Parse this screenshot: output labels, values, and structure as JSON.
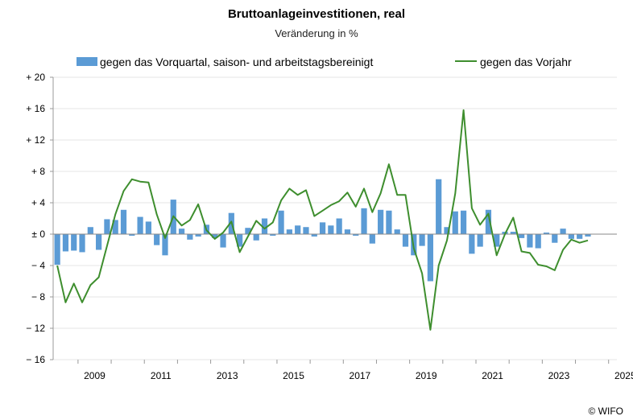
{
  "chart_data": {
    "type": "bar",
    "title": "Bruttoanlageinvestitionen, real",
    "subtitle": "Veränderung in %",
    "credit": "© WIFO",
    "ylim": [
      -16,
      20
    ],
    "yticks": [
      20,
      16,
      12,
      8,
      4,
      0,
      -4,
      -8,
      -12,
      -16
    ],
    "ytick_labels": [
      "+ 20",
      "+ 16",
      "+ 12",
      "+ 8",
      "+ 4",
      "± 0",
      "− 4",
      "− 8",
      "− 12",
      "− 16"
    ],
    "xtick_labels": [
      "2009",
      "2011",
      "2013",
      "2015",
      "2017",
      "2019",
      "2021",
      "2023",
      "2025"
    ],
    "xtick_years": [
      2009,
      2011,
      2013,
      2015,
      2017,
      2019,
      2021,
      2023,
      2025
    ],
    "x_start": 2008.25,
    "colors": {
      "bars": "#5B9BD5",
      "line": "#3E8E2E",
      "grid": "#E6E6E6"
    },
    "legend_position": "top",
    "series": [
      {
        "name": "gegen das Vorquartal, saison- und arbeitstagsbereinigt",
        "type": "bar",
        "values": [
          -3.9,
          -2.2,
          -2.1,
          -2.3,
          0.9,
          -2.0,
          1.9,
          1.8,
          3.1,
          -0.2,
          2.2,
          1.6,
          -1.4,
          -2.7,
          4.4,
          0.7,
          -0.7,
          -0.3,
          1.2,
          -0.5,
          -1.7,
          2.7,
          -1.6,
          0.8,
          -0.8,
          2.0,
          -0.2,
          3.0,
          0.6,
          1.1,
          0.9,
          -0.3,
          1.5,
          1.1,
          2.0,
          0.6,
          -0.2,
          3.3,
          -1.2,
          3.1,
          3.0,
          0.6,
          -1.6,
          -2.7,
          -1.5,
          -6.0,
          7.0,
          0.9,
          2.9,
          3.0,
          -2.5,
          -1.6,
          3.1,
          -1.6,
          0.3,
          0.3,
          -0.5,
          -1.7,
          -1.8,
          0.2,
          -1.1,
          0.7,
          -0.6,
          -0.6,
          -0.3
        ]
      },
      {
        "name": "gegen das Vorjahr",
        "type": "line",
        "values": [
          -4.0,
          -8.7,
          -6.3,
          -8.7,
          -6.5,
          -5.5,
          -1.5,
          2.5,
          5.5,
          7.0,
          6.7,
          6.6,
          2.5,
          -0.5,
          2.3,
          1.1,
          1.8,
          3.8,
          0.5,
          -0.6,
          0.2,
          1.6,
          -2.3,
          -0.3,
          1.7,
          0.7,
          1.5,
          4.3,
          5.8,
          5.0,
          5.6,
          2.3,
          3.0,
          3.7,
          4.2,
          5.3,
          3.5,
          5.8,
          2.8,
          5.2,
          8.9,
          5.0,
          5.0,
          -1.8,
          -5.0,
          -12.2,
          -4.0,
          -0.8,
          5.2,
          15.8,
          3.3,
          1.2,
          2.6,
          -2.7,
          0.0,
          2.1,
          -2.2,
          -2.4,
          -3.9,
          -4.1,
          -4.6,
          -2.0,
          -0.7,
          -1.1,
          -0.8
        ]
      }
    ]
  }
}
